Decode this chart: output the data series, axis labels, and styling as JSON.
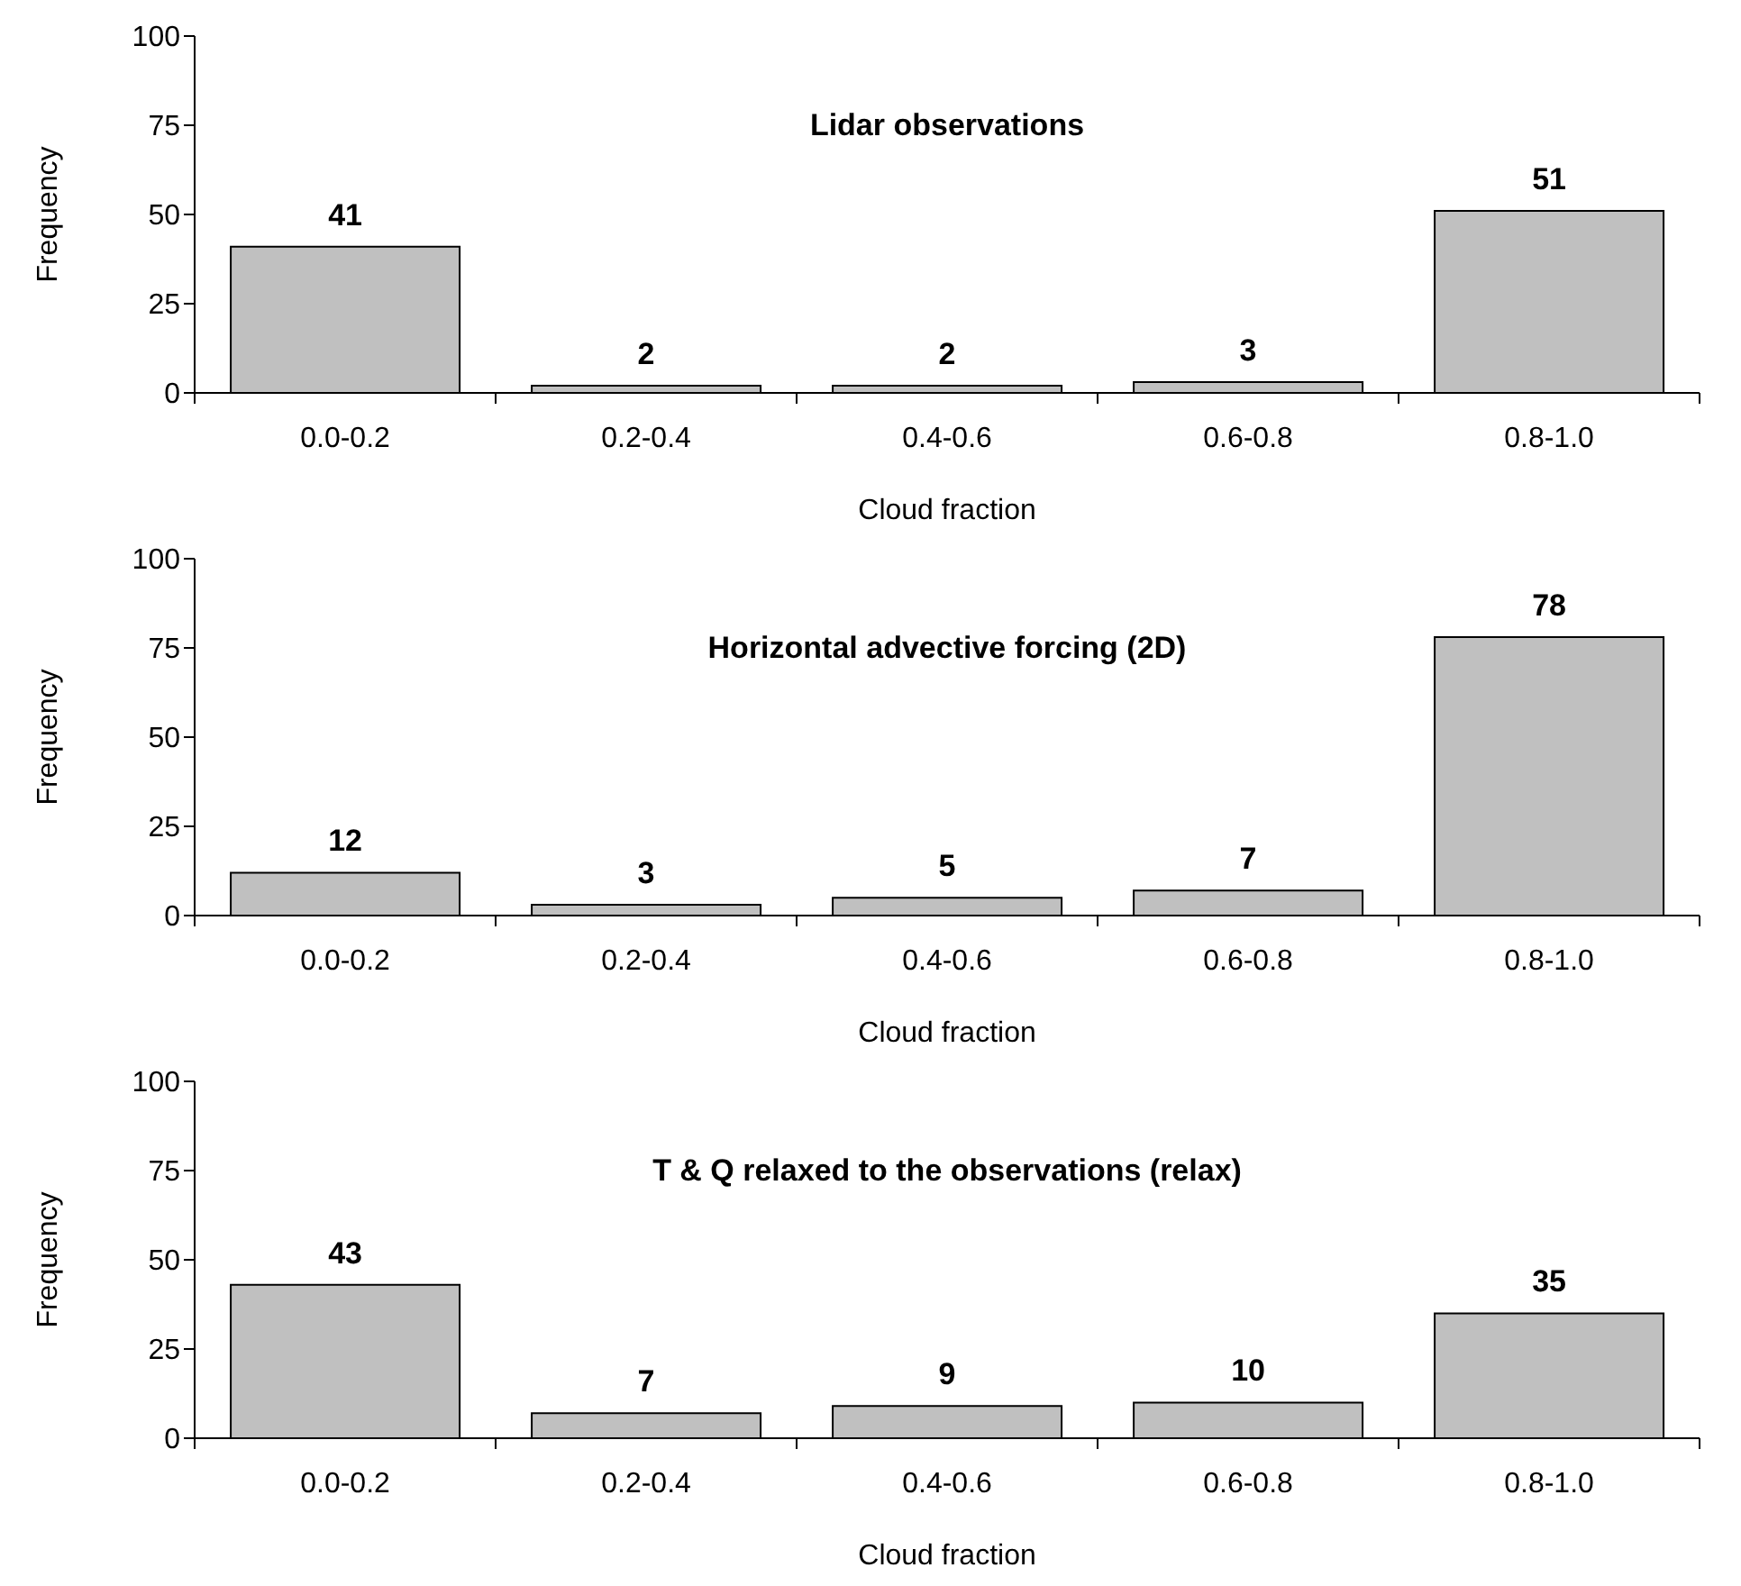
{
  "chart_data": [
    {
      "type": "bar",
      "title": "Lidar observations",
      "xlabel": "Cloud fraction",
      "ylabel": "Frequency",
      "categories": [
        "0.0-0.2",
        "0.2-0.4",
        "0.4-0.6",
        "0.6-0.8",
        "0.8-1.0"
      ],
      "values": [
        41,
        2,
        2,
        3,
        51
      ],
      "color": "#c0c0c0",
      "ylim": [
        0,
        100
      ],
      "yticks": [
        0,
        25,
        50,
        75,
        100
      ],
      "data_labels": true
    },
    {
      "type": "bar",
      "title": "Horizontal advective forcing (2D)",
      "xlabel": "Cloud fraction",
      "ylabel": "Frequency",
      "categories": [
        "0.0-0.2",
        "0.2-0.4",
        "0.4-0.6",
        "0.6-0.8",
        "0.8-1.0"
      ],
      "values": [
        12,
        3,
        5,
        7,
        78
      ],
      "color": "#c0c0c0",
      "ylim": [
        0,
        100
      ],
      "yticks": [
        0,
        25,
        50,
        75,
        100
      ],
      "data_labels": true
    },
    {
      "type": "bar",
      "title": "T & Q relaxed to the observations (relax)",
      "xlabel": "Cloud fraction",
      "ylabel": "Frequency",
      "categories": [
        "0.0-0.2",
        "0.2-0.4",
        "0.4-0.6",
        "0.6-0.8",
        "0.8-1.0"
      ],
      "values": [
        43,
        7,
        9,
        10,
        35
      ],
      "color": "#c0c0c0",
      "ylim": [
        0,
        100
      ],
      "yticks": [
        0,
        25,
        50,
        75,
        100
      ],
      "data_labels": true
    }
  ]
}
